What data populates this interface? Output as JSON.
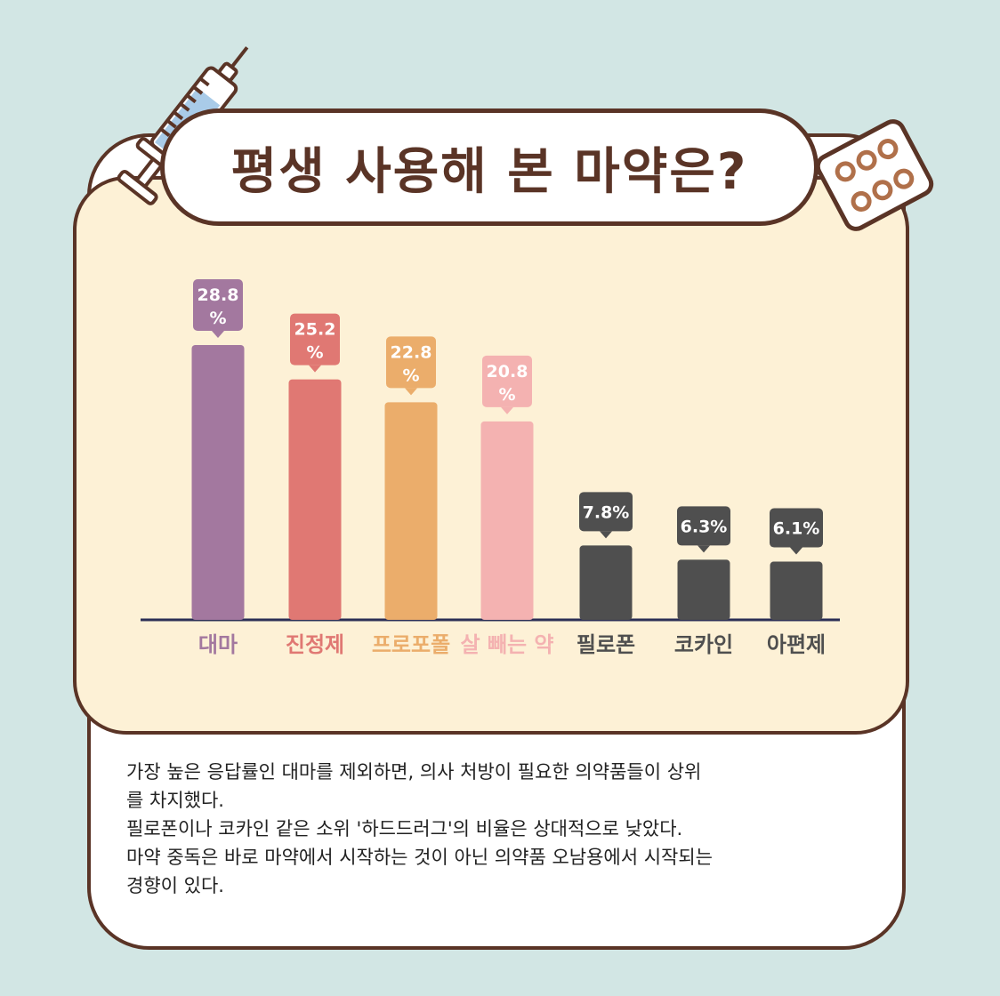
{
  "title": "평생 사용해 본 마약은?",
  "chart_data": {
    "type": "bar",
    "categories": [
      "대마",
      "진정제",
      "프로포폴",
      "살 빼는 약",
      "필로폰",
      "코카인",
      "아편제"
    ],
    "values": [
      28.8,
      25.2,
      22.8,
      20.8,
      7.8,
      6.3,
      6.1
    ],
    "value_labels": [
      "28.8%",
      "25.2%",
      "22.8%",
      "20.8%",
      "7.8%",
      "6.3%",
      "6.1%"
    ],
    "unit": "%",
    "ylim": [
      0,
      30
    ],
    "colors": [
      "#a3789f",
      "#e07873",
      "#ebad6b",
      "#f4b2b1",
      "#4f4f4f",
      "#4f4f4f",
      "#4f4f4f"
    ],
    "grid": false,
    "legend": "none"
  },
  "description": [
    "가장 높은 응답률인 대마를 제외하면, 의사 처방이 필요한 의약품들이 상위",
    "를 차지했다.",
    "필로폰이나 코카인 같은 소위 '하드드러그'의 비율은 상대적으로 낮았다.",
    "마약 중독은 바로 마약에서 시작하는 것이 아닌 의약품 오남용에서 시작되는",
    "경향이 있다."
  ],
  "colors": {
    "background": "#d2e6e4",
    "border": "#5a3426",
    "panel": "#fdf1d6"
  }
}
